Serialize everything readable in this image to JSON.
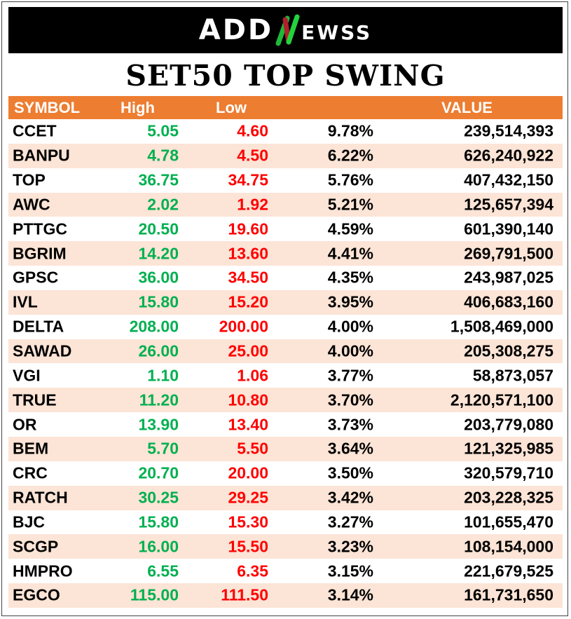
{
  "brand": {
    "logo_text_left": "ADD",
    "logo_text_right": "eWSS",
    "logo_full": "ADDNewss"
  },
  "title": "SET50 TOP SWING",
  "colors": {
    "header_bg": "#ED7D31",
    "alt_row": "#FCE4D6",
    "high": "#00B050",
    "low": "#FF0000"
  },
  "columns": {
    "symbol": "SYMBOL",
    "high": "High",
    "low": "Low",
    "value": "VALUE"
  },
  "rows": [
    {
      "symbol": "CCET",
      "high": "5.05",
      "low": "4.60",
      "pct": "9.78%",
      "value": "239,514,393"
    },
    {
      "symbol": "BANPU",
      "high": "4.78",
      "low": "4.50",
      "pct": "6.22%",
      "value": "626,240,922"
    },
    {
      "symbol": "TOP",
      "high": "36.75",
      "low": "34.75",
      "pct": "5.76%",
      "value": "407,432,150"
    },
    {
      "symbol": "AWC",
      "high": "2.02",
      "low": "1.92",
      "pct": "5.21%",
      "value": "125,657,394"
    },
    {
      "symbol": "PTTGC",
      "high": "20.50",
      "low": "19.60",
      "pct": "4.59%",
      "value": "601,390,140"
    },
    {
      "symbol": "BGRIM",
      "high": "14.20",
      "low": "13.60",
      "pct": "4.41%",
      "value": "269,791,500"
    },
    {
      "symbol": "GPSC",
      "high": "36.00",
      "low": "34.50",
      "pct": "4.35%",
      "value": "243,987,025"
    },
    {
      "symbol": "IVL",
      "high": "15.80",
      "low": "15.20",
      "pct": "3.95%",
      "value": "406,683,160"
    },
    {
      "symbol": "DELTA",
      "high": "208.00",
      "low": "200.00",
      "pct": "4.00%",
      "value": "1,508,469,000"
    },
    {
      "symbol": "SAWAD",
      "high": "26.00",
      "low": "25.00",
      "pct": "4.00%",
      "value": "205,308,275"
    },
    {
      "symbol": "VGI",
      "high": "1.10",
      "low": "1.06",
      "pct": "3.77%",
      "value": "58,873,057"
    },
    {
      "symbol": "TRUE",
      "high": "11.20",
      "low": "10.80",
      "pct": "3.70%",
      "value": "2,120,571,100"
    },
    {
      "symbol": "OR",
      "high": "13.90",
      "low": "13.40",
      "pct": "3.73%",
      "value": "203,779,080"
    },
    {
      "symbol": "BEM",
      "high": "5.70",
      "low": "5.50",
      "pct": "3.64%",
      "value": "121,325,985"
    },
    {
      "symbol": "CRC",
      "high": "20.70",
      "low": "20.00",
      "pct": "3.50%",
      "value": "320,579,710"
    },
    {
      "symbol": "RATCH",
      "high": "30.25",
      "low": "29.25",
      "pct": "3.42%",
      "value": "203,228,325"
    },
    {
      "symbol": "BJC",
      "high": "15.80",
      "low": "15.30",
      "pct": "3.27%",
      "value": "101,655,470"
    },
    {
      "symbol": "SCGP",
      "high": "16.00",
      "low": "15.50",
      "pct": "3.23%",
      "value": "108,154,000"
    },
    {
      "symbol": "HMPRO",
      "high": "6.55",
      "low": "6.35",
      "pct": "3.15%",
      "value": "221,679,525"
    },
    {
      "symbol": "EGCO",
      "high": "115.00",
      "low": "111.50",
      "pct": "3.14%",
      "value": "161,731,650"
    }
  ]
}
